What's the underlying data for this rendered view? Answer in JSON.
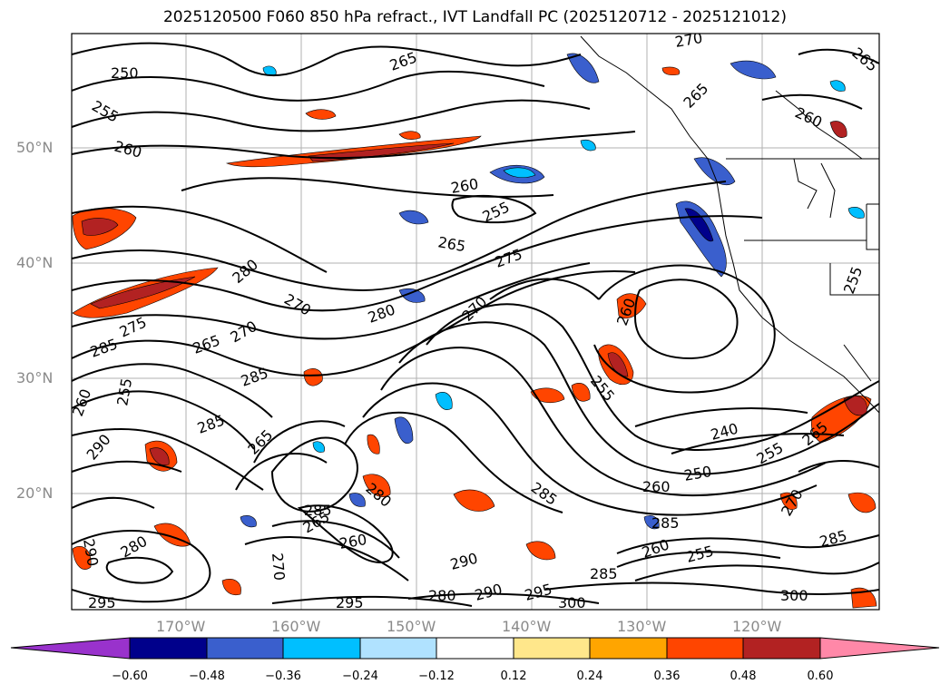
{
  "title": "2025120500 F060 850 hPa refract., IVT Landfall PC (2025120712 - 2025121012)",
  "map": {
    "lat_labels": [
      "50°N",
      "40°N",
      "30°N",
      "20°N"
    ],
    "lon_labels": [
      "170°W",
      "160°W",
      "150°W",
      "140°W",
      "130°W",
      "120°W"
    ],
    "contour_labels": [
      "250",
      "255",
      "260",
      "265",
      "270",
      "275",
      "280",
      "285",
      "290",
      "295",
      "300",
      "240",
      "250",
      "255",
      "260",
      "265",
      "270",
      "275",
      "280",
      "285",
      "290",
      "295",
      "300"
    ],
    "colors": {
      "ocean": "#ffffff",
      "contour": "#000000",
      "grid": "#b0b0b0"
    }
  },
  "colorbar": {
    "labels": [
      "−0.60",
      "−0.48",
      "−0.36",
      "−0.24",
      "−0.12",
      "0.12",
      "0.24",
      "0.36",
      "0.48",
      "0.60"
    ],
    "bins": [
      "#9932cc",
      "#00008b",
      "#3a5fcd",
      "#00bfff",
      "#b0e2ff",
      "#ffffff",
      "#ffe78b",
      "#ffa500",
      "#ff4500",
      "#b22222",
      "#ff88a8"
    ]
  }
}
